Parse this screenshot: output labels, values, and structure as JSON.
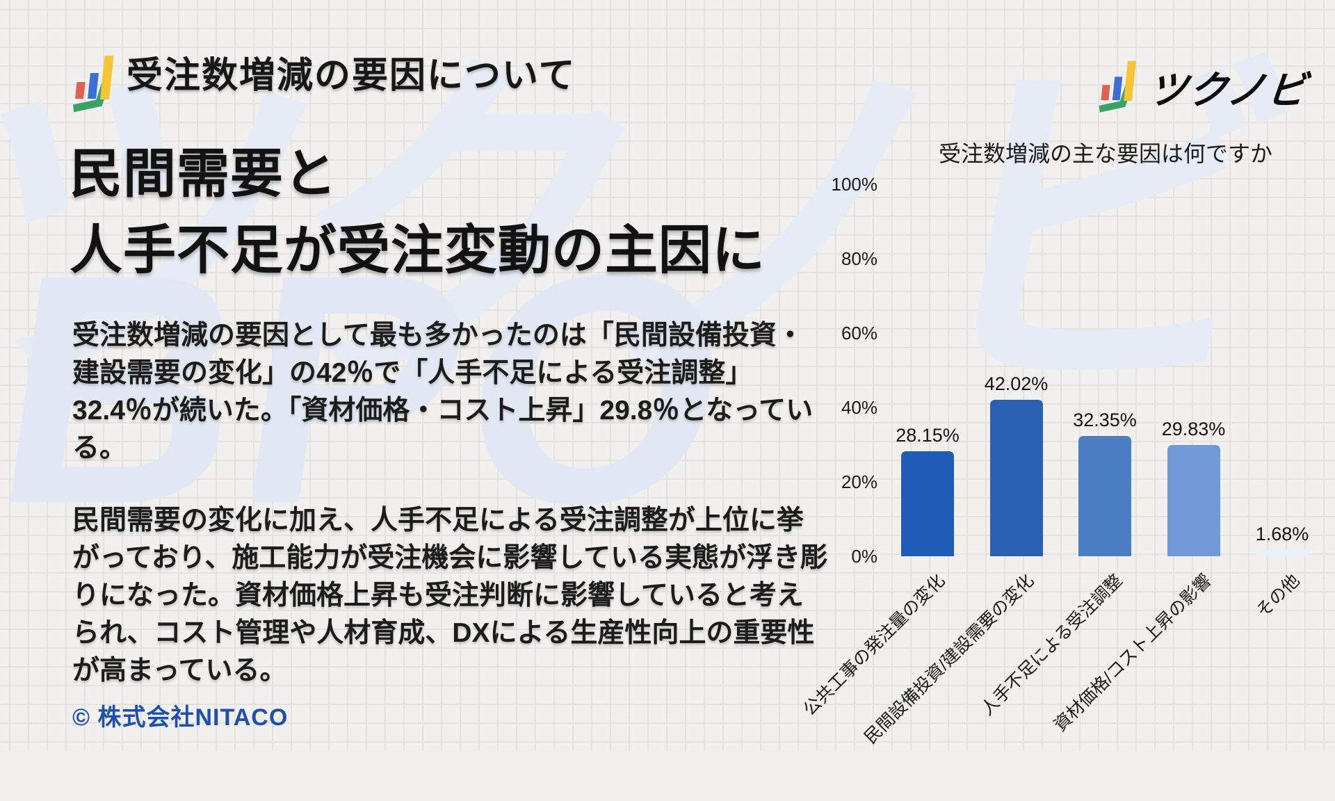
{
  "header": {
    "title": "受注数増減の要因について"
  },
  "brand": {
    "name": "ツクノビ"
  },
  "headline": {
    "lines": [
      "民間需要と",
      "人手不足が受注変動の主因に"
    ]
  },
  "body": {
    "paragraph1_lines": [
      "受注数増減の要因として最も多かったのは「民間設備投資・",
      "建設需要の変化」の42％で「人手不足による受注調整」",
      "32.4％が続いた。「資材価格・コスト上昇」29.8％となってい",
      "る。"
    ],
    "paragraph2_lines": [
      "民間需要の変化に加え、人手不足による受注調整が上位に挙",
      "がっており、施工能力が受注機会に影響している実態が浮き彫",
      "りになった。資材価格上昇も受注判断に影響していると考え",
      "られ、コスト管理や人材育成、DXによる生産性向上の重要性",
      "が高まっている。"
    ]
  },
  "footer": {
    "copyright": "© 株式会社NITACO"
  },
  "watermark": {
    "top_text": "ツクノビ",
    "bottom_text": "BPO"
  },
  "colors": {
    "background": "#f1f0ee",
    "grid_line": "#e3e2df",
    "footer_blue": "#1d4fae",
    "text_dark": "#1b1b1b",
    "icon_red": "#df6150",
    "icon_blue": "#3c6fd6",
    "icon_yellow": "#f6c435",
    "icon_green": "#3aa169",
    "watermark_blue": "#e4eaf5"
  },
  "chart_data": {
    "type": "bar",
    "title": "受注数増減の主な要因は何ですか",
    "categories": [
      "公共工事の発注量の変化",
      "民間設備投資/建設需要の変化",
      "人手不足による受注調整",
      "資材価格/コスト上昇の影響",
      "その他"
    ],
    "values": [
      28.15,
      42.02,
      32.35,
      29.83,
      1.68
    ],
    "value_labels": [
      "28.15%",
      "42.02%",
      "32.35%",
      "29.83%",
      "1.68%"
    ],
    "bar_colors": [
      "#1e5cb8",
      "#2a5fb2",
      "#4c7ec4",
      "#6f9ad5",
      "#e9f1fa"
    ],
    "y_ticks": [
      0,
      20,
      40,
      60,
      80,
      100
    ],
    "y_tick_labels": [
      "0%",
      "20%",
      "40%",
      "60%",
      "80%",
      "100%"
    ],
    "ylim": [
      0,
      100
    ],
    "x_label_rotation": -45,
    "grid": false,
    "legend": "none"
  }
}
